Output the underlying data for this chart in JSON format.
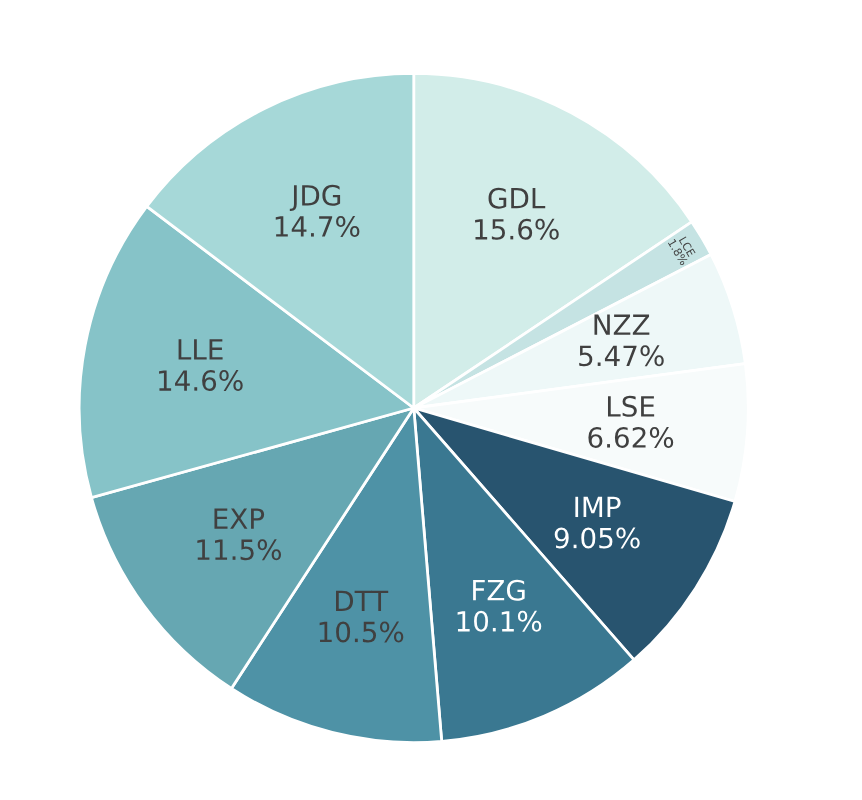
{
  "chart_data": {
    "type": "pie",
    "categories": [
      "GDL",
      "LCE",
      "NZZ",
      "LSE",
      "IMP",
      "FZG",
      "DTT",
      "EXP",
      "LLE",
      "JDG"
    ],
    "values": [
      15.6,
      1.8,
      5.47,
      6.62,
      9.05,
      10.1,
      10.5,
      11.5,
      14.6,
      14.7
    ],
    "value_labels": [
      "15.6%",
      "1.8%",
      "5.47%",
      "6.62%",
      "9.05%",
      "10.1%",
      "10.5%",
      "11.5%",
      "14.6%",
      "14.7%"
    ],
    "colors": [
      "#d2ede9",
      "#c5e3e3",
      "#eef8f8",
      "#f7fbfb",
      "#28546f",
      "#3a7891",
      "#4e92a6",
      "#66a7b2",
      "#86c3c8",
      "#a6d8d8"
    ],
    "legend": false
  }
}
